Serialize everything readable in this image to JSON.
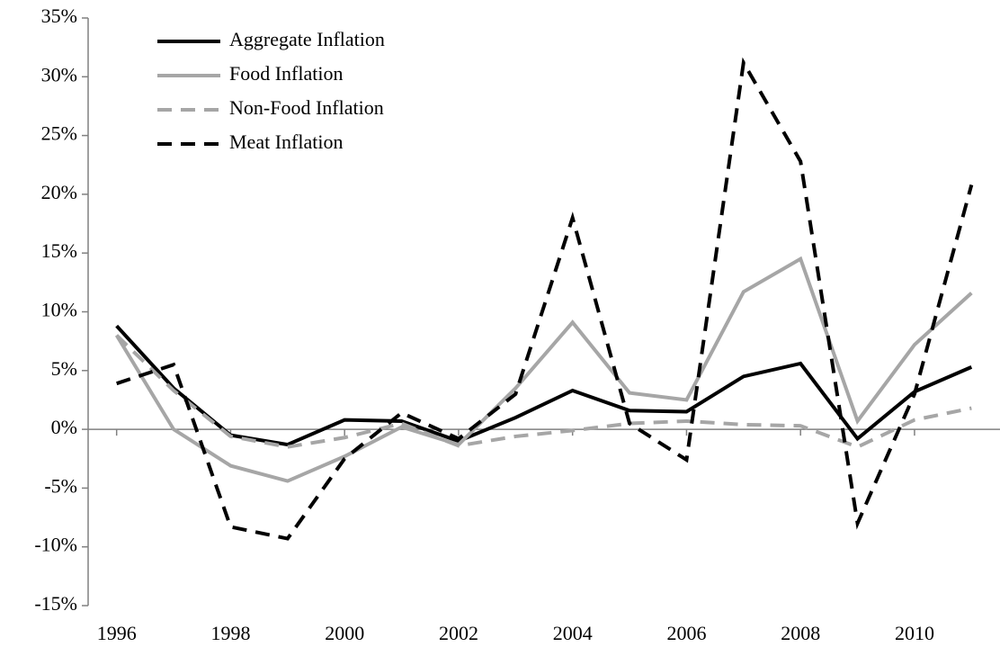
{
  "chart_data": {
    "type": "line",
    "x": [
      1996,
      1997,
      1998,
      1999,
      2000,
      2001,
      2002,
      2003,
      2004,
      2005,
      2006,
      2007,
      2008,
      2009,
      2010,
      2011
    ],
    "xlim": [
      1995.5,
      2011.5
    ],
    "xticks": [
      1996,
      1998,
      2000,
      2002,
      2004,
      2006,
      2008,
      2010
    ],
    "ylim": [
      -15,
      35
    ],
    "yticks": [
      {
        "value": -15,
        "label": "-15%"
      },
      {
        "value": -10,
        "label": "-10%"
      },
      {
        "value": -5,
        "label": "-5%"
      },
      {
        "value": 0,
        "label": "0%"
      },
      {
        "value": 5,
        "label": "5%"
      },
      {
        "value": 10,
        "label": "10%"
      },
      {
        "value": 15,
        "label": "15%"
      },
      {
        "value": 20,
        "label": "20%"
      },
      {
        "value": 25,
        "label": "25%"
      },
      {
        "value": 30,
        "label": "30%"
      },
      {
        "value": 35,
        "label": "35%"
      }
    ],
    "legend": "top-left",
    "series": [
      {
        "name": "Aggregate Inflation",
        "color": "#000000",
        "dashed": false,
        "values": [
          8.8,
          3.5,
          -0.5,
          -1.3,
          0.8,
          0.7,
          -1.0,
          1.0,
          3.3,
          1.6,
          1.5,
          4.5,
          5.6,
          -0.8,
          3.2,
          5.3
        ]
      },
      {
        "name": "Food Inflation",
        "color": "#a6a6a6",
        "dashed": false,
        "values": [
          8.0,
          0.0,
          -3.1,
          -4.4,
          -2.3,
          0.2,
          -1.3,
          3.5,
          9.1,
          3.1,
          2.5,
          11.7,
          14.5,
          0.7,
          7.2,
          11.6
        ]
      },
      {
        "name": "Non-Food Inflation",
        "color": "#a6a6a6",
        "dashed": true,
        "values": [
          8.0,
          3.3,
          -0.6,
          -1.5,
          -0.7,
          0.5,
          -1.4,
          -0.6,
          -0.1,
          0.5,
          0.7,
          0.4,
          0.3,
          -1.5,
          0.8,
          1.8
        ]
      },
      {
        "name": "Meat Inflation",
        "color": "#000000",
        "dashed": true,
        "values": [
          3.9,
          5.5,
          -8.3,
          -9.3,
          -2.5,
          1.4,
          -0.8,
          3.0,
          18.0,
          0.5,
          -2.6,
          31.2,
          22.8,
          -8.0,
          3.0,
          20.8
        ]
      }
    ]
  }
}
